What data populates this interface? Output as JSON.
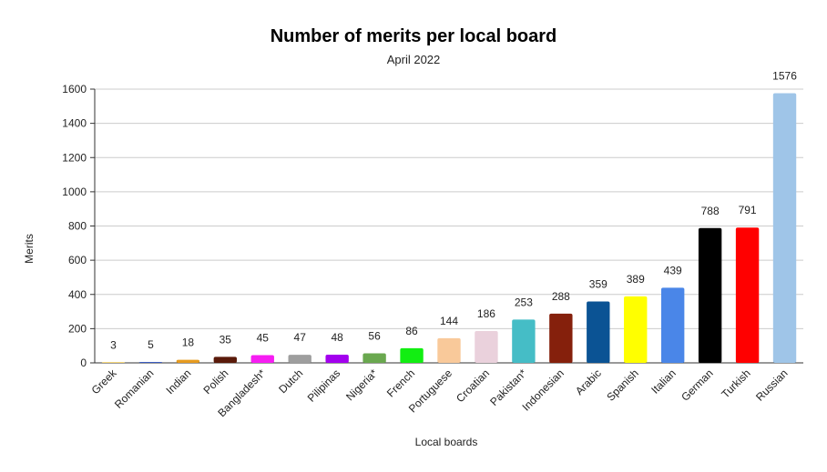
{
  "chart_data": {
    "type": "bar",
    "title": "Number of merits per local board",
    "subtitle": "April 2022",
    "xlabel": "Local boards",
    "ylabel": "Merits",
    "ylim": [
      0,
      1600
    ],
    "yticks": [
      0,
      200,
      400,
      600,
      800,
      1000,
      1200,
      1400,
      1600
    ],
    "grid": true,
    "categories": [
      "Greek",
      "Romanian",
      "Indian",
      "Polish",
      "Bangladesh*",
      "Dutch",
      "Pilipinas",
      "Nigeria*",
      "French",
      "Portuguese",
      "Croatian",
      "Pakistan*",
      "Indonesian",
      "Arabic",
      "Spanish",
      "Italian",
      "German",
      "Turkish",
      "Russian"
    ],
    "values": [
      3,
      5,
      18,
      35,
      45,
      47,
      48,
      56,
      86,
      144,
      186,
      253,
      288,
      359,
      389,
      439,
      788,
      791,
      1576
    ],
    "colors": [
      "#f2c94c",
      "#3b5bbf",
      "#e69b1f",
      "#5a1a0a",
      "#f61df2",
      "#9e9e9e",
      "#a300ee",
      "#6aa84f",
      "#12ee12",
      "#f9c99a",
      "#ead1dc",
      "#45bdc6",
      "#85200c",
      "#0b5394",
      "#ffff00",
      "#4a86e8",
      "#000000",
      "#ff0000",
      "#9fc5e8"
    ]
  }
}
